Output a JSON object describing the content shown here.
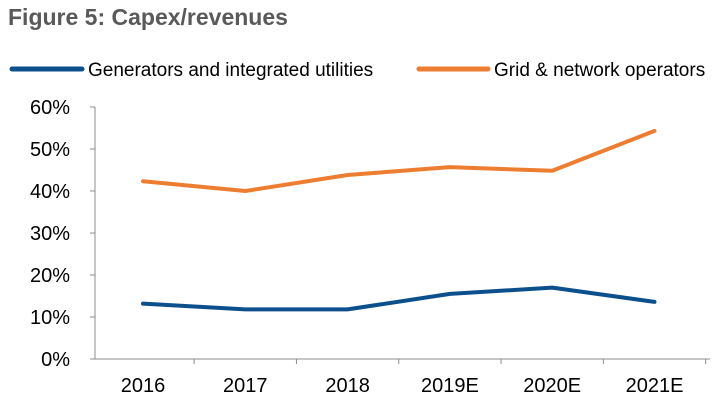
{
  "chart_data": {
    "type": "line",
    "title": "Figure 5: Capex/revenues",
    "xlabel": "",
    "ylabel": "",
    "categories": [
      "2016",
      "2017",
      "2018",
      "2019E",
      "2020E",
      "2021E"
    ],
    "series": [
      {
        "name": "Generators and integrated utilities",
        "color": "#0B4F8C",
        "values": [
          13.2,
          11.8,
          11.8,
          15.5,
          17.0,
          13.6
        ]
      },
      {
        "name": "Grid & network operators",
        "color": "#ED7D31",
        "values": [
          42.3,
          40.0,
          43.8,
          45.7,
          44.8,
          54.3
        ]
      }
    ],
    "ylim": [
      0,
      60
    ],
    "yticks": [
      0,
      10,
      20,
      30,
      40,
      50,
      60
    ],
    "ytick_labels": [
      "0%",
      "10%",
      "20%",
      "30%",
      "40%",
      "50%",
      "60%"
    ],
    "grid": false,
    "legend_position": "top"
  }
}
